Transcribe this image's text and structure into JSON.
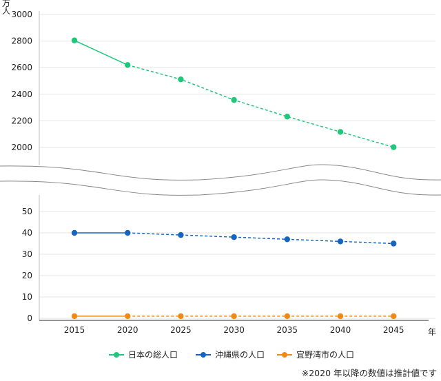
{
  "chart_data": {
    "type": "line",
    "ylabel": "万人",
    "xlabel": "年",
    "categories": [
      "2015",
      "2020",
      "2025",
      "2030",
      "2035",
      "2040",
      "2045"
    ],
    "axis_break": true,
    "upper_axis": {
      "ylim": [
        2000,
        3000
      ],
      "ticks": [
        "3000",
        "2800",
        "2600",
        "2400",
        "2200",
        "2000"
      ]
    },
    "lower_axis": {
      "ylim": [
        0,
        50
      ],
      "ticks": [
        "50",
        "40",
        "30",
        "20",
        "10",
        "0"
      ]
    },
    "series": [
      {
        "name": "日本の総人口",
        "color": "#1ec77a",
        "axis": "upper",
        "values": [
          2805,
          2620,
          2512,
          2357,
          2232,
          2117,
          2002
        ]
      },
      {
        "name": "沖縄県の人口",
        "color": "#1565c0",
        "axis": "lower",
        "values": [
          40,
          40,
          39,
          38,
          37,
          36,
          35
        ]
      },
      {
        "name": "宜野湾市の人口",
        "color": "#ef8a17",
        "axis": "lower",
        "values": [
          1,
          1,
          1,
          1,
          1,
          1,
          1
        ]
      }
    ],
    "dashed_from_category": "2020",
    "grid": true,
    "legend_position": "bottom",
    "note": "※2020 年以降の数値は推計値です"
  }
}
